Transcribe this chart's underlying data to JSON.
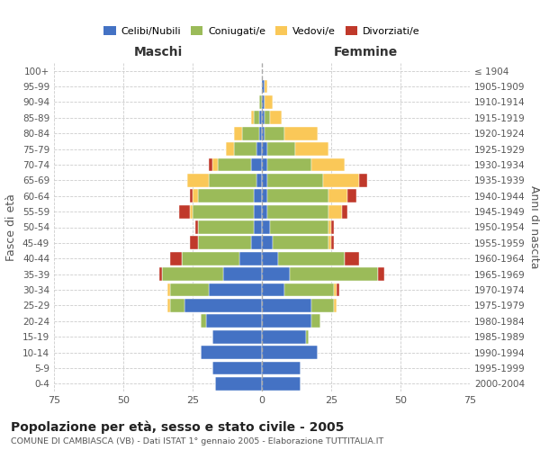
{
  "age_groups": [
    "0-4",
    "5-9",
    "10-14",
    "15-19",
    "20-24",
    "25-29",
    "30-34",
    "35-39",
    "40-44",
    "45-49",
    "50-54",
    "55-59",
    "60-64",
    "65-69",
    "70-74",
    "75-79",
    "80-84",
    "85-89",
    "90-94",
    "95-99",
    "100+"
  ],
  "birth_years": [
    "2000-2004",
    "1995-1999",
    "1990-1994",
    "1985-1989",
    "1980-1984",
    "1975-1979",
    "1970-1974",
    "1965-1969",
    "1960-1964",
    "1955-1959",
    "1950-1954",
    "1945-1949",
    "1940-1944",
    "1935-1939",
    "1930-1934",
    "1925-1929",
    "1920-1924",
    "1915-1919",
    "1910-1914",
    "1905-1909",
    "≤ 1904"
  ],
  "male": {
    "celibe": [
      17,
      18,
      22,
      18,
      20,
      28,
      19,
      14,
      8,
      4,
      3,
      3,
      3,
      2,
      4,
      2,
      1,
      1,
      0,
      0,
      0
    ],
    "coniugato": [
      0,
      0,
      0,
      0,
      2,
      5,
      14,
      22,
      21,
      19,
      20,
      22,
      20,
      17,
      12,
      8,
      6,
      2,
      1,
      0,
      0
    ],
    "vedovo": [
      0,
      0,
      0,
      0,
      0,
      1,
      1,
      0,
      0,
      0,
      0,
      1,
      2,
      8,
      2,
      3,
      3,
      1,
      0,
      0,
      0
    ],
    "divorziato": [
      0,
      0,
      0,
      0,
      0,
      0,
      0,
      1,
      4,
      3,
      1,
      4,
      1,
      0,
      1,
      0,
      0,
      0,
      0,
      0,
      0
    ]
  },
  "female": {
    "nubile": [
      14,
      14,
      20,
      16,
      18,
      18,
      8,
      10,
      6,
      4,
      3,
      2,
      2,
      2,
      2,
      2,
      1,
      1,
      1,
      1,
      0
    ],
    "coniugata": [
      0,
      0,
      0,
      1,
      3,
      8,
      18,
      32,
      24,
      20,
      21,
      22,
      22,
      20,
      16,
      10,
      7,
      2,
      0,
      0,
      0
    ],
    "vedova": [
      0,
      0,
      0,
      0,
      0,
      1,
      1,
      0,
      0,
      1,
      1,
      5,
      7,
      13,
      12,
      12,
      12,
      4,
      3,
      1,
      0
    ],
    "divorziata": [
      0,
      0,
      0,
      0,
      0,
      0,
      1,
      2,
      5,
      1,
      1,
      2,
      3,
      3,
      0,
      0,
      0,
      0,
      0,
      0,
      0
    ]
  },
  "colors": {
    "celibe": "#4472C4",
    "coniugato": "#9BBB59",
    "vedovo": "#FAC858",
    "divorziato": "#C0392B"
  },
  "xlim": 75,
  "title": "Popolazione per età, sesso e stato civile - 2005",
  "subtitle": "COMUNE DI CAMBIASCA (VB) - Dati ISTAT 1° gennaio 2005 - Elaborazione TUTTITALIA.IT",
  "ylabel_left": "Fasce di età",
  "ylabel_right": "Anni di nascita",
  "xlabel_maschi": "Maschi",
  "xlabel_femmine": "Femmine",
  "background_color": "#ffffff",
  "grid_color": "#cccccc"
}
